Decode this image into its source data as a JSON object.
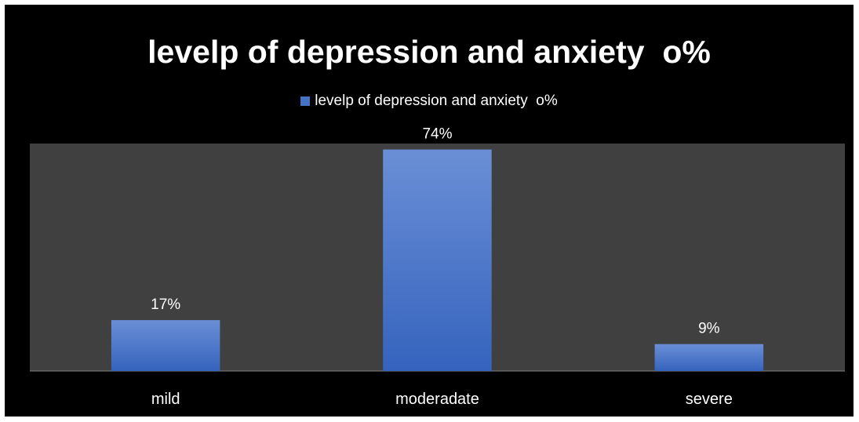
{
  "chart_data": {
    "type": "bar",
    "title": "levelp of depression and anxiety  o%",
    "legend": {
      "placement": "top-center",
      "entries": [
        "levelp of depression and anxiety  o%"
      ]
    },
    "categories": [
      "mild",
      "moderadate",
      "severe"
    ],
    "series": [
      {
        "name": "levelp of depression and anxiety  o%",
        "values": [
          17,
          74,
          9
        ],
        "data_labels": [
          "17%",
          "74%",
          "9%"
        ],
        "color": "#4472c4"
      }
    ],
    "ylim": [
      0,
      76
    ],
    "grid": false,
    "colors": {
      "background": "#000000",
      "plot_area": "#404040",
      "bar_top": "#6a8fd6",
      "bar_bottom": "#3563bd",
      "text": "#ffffff"
    }
  }
}
